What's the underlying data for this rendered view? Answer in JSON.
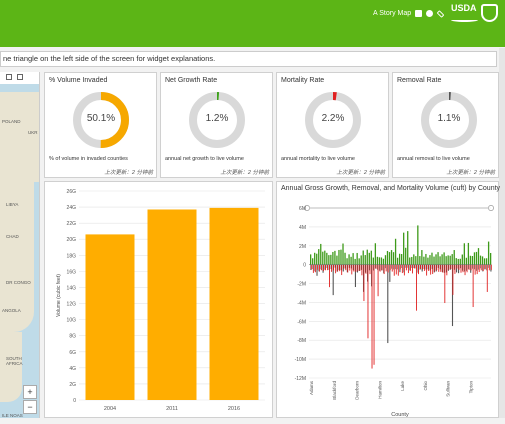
{
  "header": {
    "brand_label": "A Story Map",
    "agency_logo_text": "USDA",
    "icons": [
      "facebook-icon",
      "twitter-icon",
      "link-icon",
      "forest-service-shield-icon"
    ],
    "accent_color": "#5cb516"
  },
  "notice": {
    "text": "ne triangle on the left side of the screen for widget explanations."
  },
  "map": {
    "labels": [
      "POLAND",
      "UKR",
      "LIBYA",
      "CHAD",
      "DR CONGO",
      "ANGOLA",
      "SOUTH AFRICA",
      "ILE NOAS"
    ],
    "zoom_in": "+",
    "zoom_out": "−"
  },
  "gauges": [
    {
      "title": "% Volume Invaded",
      "value_text": "50.1%",
      "fraction": 0.501,
      "color": "#f6a800",
      "description": "% of volume in invaded counties",
      "updated": "上次更新：2 分钟前"
    },
    {
      "title": "Net Growth Rate",
      "value_text": "1.2%",
      "fraction": 0.012,
      "color": "#3ea21a",
      "description": "annual net growth to live volume",
      "updated": "上次更新：2 分钟前"
    },
    {
      "title": "Mortality Rate",
      "value_text": "2.2%",
      "fraction": 0.022,
      "color": "#e02020",
      "description": "annual mortality to live volume",
      "updated": "上次更新：2 分钟前"
    },
    {
      "title": "Removal Rate",
      "value_text": "1.1%",
      "fraction": 0.011,
      "color": "#555555",
      "description": "annual removal to live volume",
      "updated": "上次更新：2 分钟前"
    }
  ],
  "chart_data": [
    {
      "type": "bar",
      "categories": [
        "2004",
        "2011",
        "2016"
      ],
      "values": [
        20.6,
        23.7,
        23.9
      ],
      "ylabel": "Volume (cubic feet)",
      "yticks": [
        "0",
        "2G",
        "4G",
        "6G",
        "8G",
        "10G",
        "12G",
        "14G",
        "16G",
        "18G",
        "20G",
        "22G",
        "24G",
        "26G"
      ],
      "ylim": [
        0,
        26
      ],
      "color": "#ffad00",
      "grid": true
    },
    {
      "type": "bar",
      "title": "Annual Gross Growth, Removal, and Mortality Volume (cuft) by County",
      "xlabel": "County",
      "ylim": [
        -12,
        6
      ],
      "yticks": [
        "6M",
        "4M",
        "2M",
        "0",
        "-2M",
        "-4M",
        "-6M",
        "-8M",
        "-10M",
        "-12M"
      ],
      "xticks": [
        "Adams",
        "Blackford",
        "Dearborn",
        "Hamilton",
        "Lake",
        "Ohio",
        "Sullivan",
        "Tipton"
      ],
      "series_colors": {
        "growth": "#3e9a1a",
        "mortality": "#e02020",
        "removal": "#555555"
      },
      "grid": true
    }
  ]
}
